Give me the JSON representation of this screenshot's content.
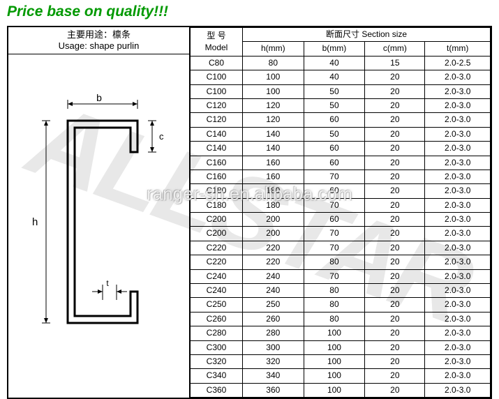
{
  "title": "Price base on quality!!!",
  "usage_header_cn": "主要用途：檩条",
  "usage_header_en": "Usage: shape purlin",
  "table": {
    "header_model_cn": "型 号",
    "header_model_en": "Model",
    "header_section_cn": "断面尺寸",
    "header_section_en": "Section size",
    "columns": [
      "h(mm)",
      "b(mm)",
      "c(mm)",
      "t(mm)"
    ],
    "rows": [
      [
        "C80",
        "80",
        "40",
        "15",
        "2.0-2.5"
      ],
      [
        "C100",
        "100",
        "40",
        "20",
        "2.0-3.0"
      ],
      [
        "C100",
        "100",
        "50",
        "20",
        "2.0-3.0"
      ],
      [
        "C120",
        "120",
        "50",
        "20",
        "2.0-3.0"
      ],
      [
        "C120",
        "120",
        "60",
        "20",
        "2.0-3.0"
      ],
      [
        "C140",
        "140",
        "50",
        "20",
        "2.0-3.0"
      ],
      [
        "C140",
        "140",
        "60",
        "20",
        "2.0-3.0"
      ],
      [
        "C160",
        "160",
        "60",
        "20",
        "2.0-3.0"
      ],
      [
        "C160",
        "160",
        "70",
        "20",
        "2.0-3.0"
      ],
      [
        "C180",
        "180",
        "60",
        "20",
        "2.0-3.0"
      ],
      [
        "C180",
        "180",
        "70",
        "20",
        "2.0-3.0"
      ],
      [
        "C200",
        "200",
        "60",
        "20",
        "2.0-3.0"
      ],
      [
        "C200",
        "200",
        "70",
        "20",
        "2.0-3.0"
      ],
      [
        "C220",
        "220",
        "70",
        "20",
        "2.0-3.0"
      ],
      [
        "C220",
        "220",
        "80",
        "20",
        "2.0-3.0"
      ],
      [
        "C240",
        "240",
        "70",
        "20",
        "2.0-3.0"
      ],
      [
        "C240",
        "240",
        "80",
        "20",
        "2.0-3.0"
      ],
      [
        "C250",
        "250",
        "80",
        "20",
        "2.0-3.0"
      ],
      [
        "C260",
        "260",
        "80",
        "20",
        "2.0-3.0"
      ],
      [
        "C280",
        "280",
        "100",
        "20",
        "2.0-3.0"
      ],
      [
        "C300",
        "300",
        "100",
        "20",
        "2.0-3.0"
      ],
      [
        "C320",
        "320",
        "100",
        "20",
        "2.0-3.0"
      ],
      [
        "C340",
        "340",
        "100",
        "20",
        "2.0-3.0"
      ],
      [
        "C360",
        "360",
        "100",
        "20",
        "2.0-3.0"
      ]
    ]
  },
  "diagram": {
    "labels": {
      "h": "h",
      "b": "b",
      "c": "c",
      "t": "t"
    },
    "stroke": "#000000",
    "stroke_width": 3,
    "dim_stroke_width": 1
  },
  "watermark_bg": "ALLSTAR",
  "watermark_fg": "ranger-sh.en.alibaba.com",
  "colors": {
    "title": "#009900",
    "border": "#000000",
    "bg": "#ffffff",
    "watermark_bg": "#e8e8e8"
  }
}
